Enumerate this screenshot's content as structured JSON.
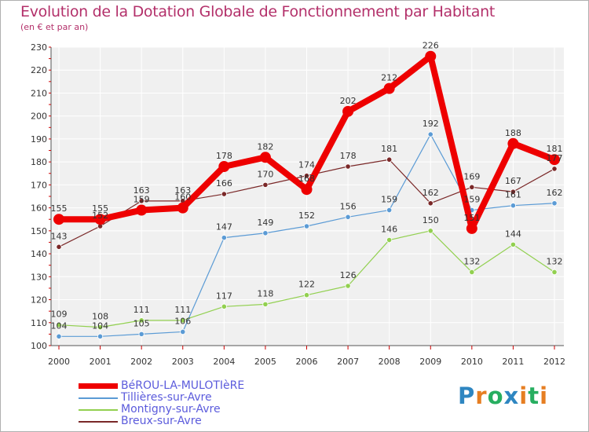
{
  "title": "Evolution de la Dotation Globale de Fonctionnement par Habitant",
  "subtitle": "(en € et par an)",
  "logo": {
    "text": "Proxiti",
    "letters": [
      "P",
      "r",
      "o",
      "x",
      "i",
      "t",
      "i"
    ],
    "colors": [
      "#2e86c1",
      "#e67e22",
      "#27ae60",
      "#2e86c1",
      "#e67e22",
      "#27ae60",
      "#e67e22"
    ]
  },
  "chart_data": {
    "type": "line",
    "x": [
      2000,
      2001,
      2002,
      2003,
      2004,
      2005,
      2006,
      2007,
      2008,
      2009,
      2010,
      2011,
      2012
    ],
    "ylim": [
      100,
      230
    ],
    "yticks": [
      100,
      110,
      120,
      130,
      140,
      150,
      160,
      170,
      180,
      190,
      200,
      210,
      220,
      230
    ],
    "grid": true,
    "series": [
      {
        "name": "BéROU-LA-MULOTIèRE",
        "color": "#ee0000",
        "values": [
          155,
          155,
          159,
          160,
          178,
          182,
          168,
          202,
          212,
          226,
          151,
          188,
          181
        ],
        "labels": [
          "155",
          "155",
          "159",
          "160",
          "178",
          "182",
          "168",
          "202",
          "212",
          "226",
          "151",
          "188",
          "181"
        ]
      },
      {
        "name": "Tillières-sur-Avre",
        "color": "#5b9bd5",
        "values": [
          104,
          104,
          105,
          106,
          147,
          149,
          152,
          156,
          159,
          192,
          159,
          161,
          162
        ],
        "labels": [
          "104",
          "104",
          "105",
          "106",
          "147",
          "149",
          "152",
          "156",
          "159",
          "192",
          "159",
          "161",
          "162"
        ]
      },
      {
        "name": "Montigny-sur-Avre",
        "color": "#92d050",
        "values": [
          109,
          108,
          111,
          111,
          117,
          118,
          122,
          126,
          146,
          150,
          132,
          144,
          132
        ],
        "labels": [
          "109",
          "108",
          "111",
          "111",
          "117",
          "118",
          "122",
          "126",
          "146",
          "150",
          "132",
          "144",
          "132"
        ]
      },
      {
        "name": "Breux-sur-Avre",
        "color": "#7a2828",
        "values": [
          143,
          152,
          163,
          163,
          166,
          170,
          174,
          178,
          181,
          162,
          169,
          167,
          177
        ],
        "labels": [
          "143",
          "152",
          "163",
          "163",
          "166",
          "170",
          "174",
          "178",
          "181",
          "162",
          "169",
          "167",
          "177"
        ]
      }
    ]
  }
}
